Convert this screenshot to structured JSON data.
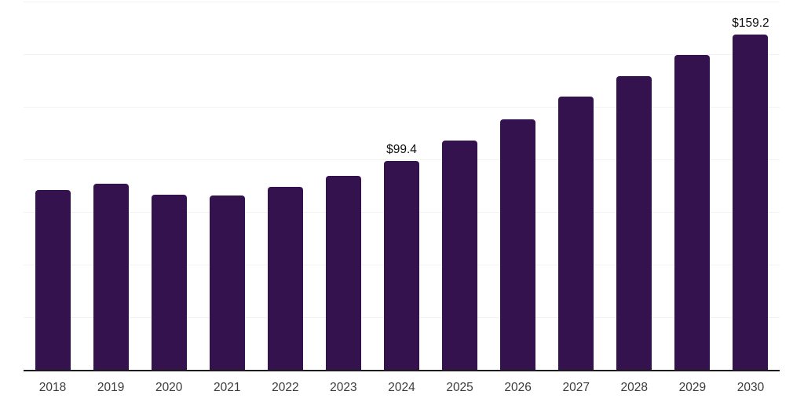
{
  "chart_data": {
    "type": "bar",
    "title": "",
    "xlabel": "",
    "ylabel": "",
    "categories": [
      "2018",
      "2019",
      "2020",
      "2021",
      "2022",
      "2023",
      "2024",
      "2025",
      "2026",
      "2027",
      "2028",
      "2029",
      "2030"
    ],
    "values": [
      85.5,
      88.6,
      83.2,
      83.0,
      86.8,
      92.3,
      99.4,
      109.0,
      119.2,
      129.8,
      139.4,
      149.5,
      159.2
    ],
    "data_labels": {
      "2024": "$99.4",
      "2030": "$159.2"
    },
    "ylim": [
      0,
      175
    ],
    "gridline_step": 25,
    "grid": true,
    "legend": false,
    "colors": {
      "bar": "#33124e",
      "gridline": "#f2f2f2",
      "axis_line": "#1c1c1c",
      "tick_label": "#3d3d3d",
      "value_label": "#0e0e0e",
      "background": "#ffffff"
    }
  }
}
